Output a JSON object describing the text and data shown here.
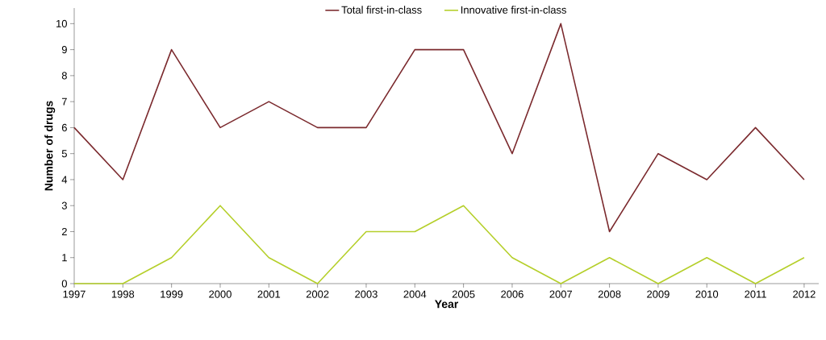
{
  "chart_data": {
    "type": "line",
    "xlabel": "Year",
    "ylabel": "Number of drugs",
    "x": [
      1997,
      1998,
      1999,
      2000,
      2001,
      2002,
      2003,
      2004,
      2005,
      2006,
      2007,
      2008,
      2009,
      2010,
      2011,
      2012
    ],
    "series": [
      {
        "name": "Total first-in-class",
        "color": "#7b2a2e",
        "values": [
          6,
          4,
          9,
          6,
          7,
          6,
          6,
          9,
          9,
          5,
          10,
          2,
          5,
          4,
          6,
          4
        ]
      },
      {
        "name": "Innovative first-in-class",
        "color": "#b5cf2a",
        "values": [
          0,
          0,
          1,
          3,
          1,
          0,
          2,
          2,
          3,
          1,
          0,
          1,
          0,
          1,
          0,
          1
        ]
      }
    ],
    "xlim": [
      1997,
      2012.3
    ],
    "xticks": [
      1997,
      1998,
      1999,
      2000,
      2001,
      2002,
      2003,
      2004,
      2005,
      2006,
      2007,
      2008,
      2009,
      2010,
      2011,
      2012
    ],
    "ylim": [
      0,
      10.6
    ],
    "yticks": [
      0,
      1,
      2,
      3,
      4,
      5,
      6,
      7,
      8,
      9,
      10
    ],
    "legend": "top",
    "line_style": "solid"
  }
}
